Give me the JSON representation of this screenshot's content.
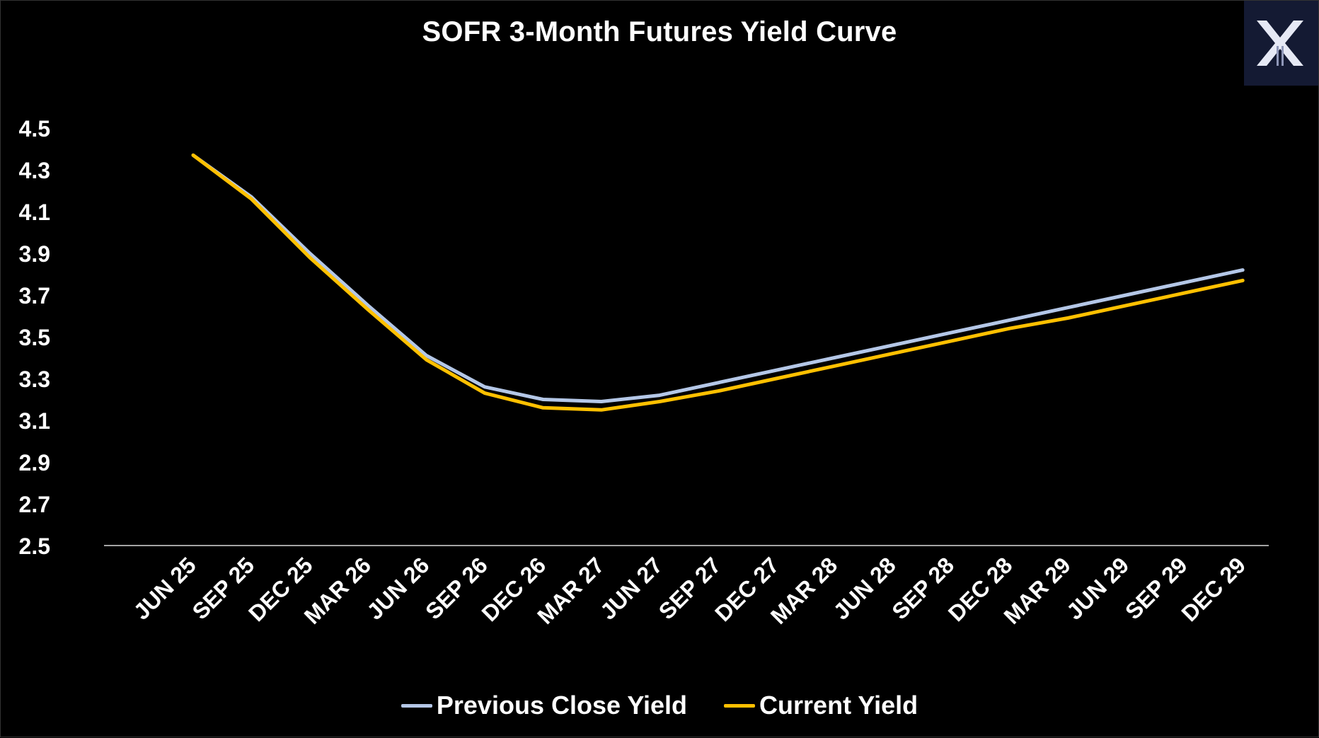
{
  "chart_data": {
    "type": "line",
    "title": "SOFR 3-Month Futures Yield Curve",
    "categories": [
      "JUN 25",
      "SEP 25",
      "DEC 25",
      "MAR 26",
      "JUN 26",
      "SEP 26",
      "DEC 26",
      "MAR 27",
      "JUN 27",
      "SEP 27",
      "DEC 27",
      "MAR 28",
      "JUN 28",
      "SEP 28",
      "DEC 28",
      "MAR 29",
      "JUN 29",
      "SEP 29",
      "DEC 29"
    ],
    "series": [
      {
        "name": "Previous Close Yield",
        "color": "#b4c7e7",
        "values": [
          4.37,
          4.17,
          3.9,
          3.65,
          3.41,
          3.26,
          3.2,
          3.19,
          3.22,
          3.28,
          3.34,
          3.4,
          3.46,
          3.52,
          3.58,
          3.64,
          3.7,
          3.76,
          3.82
        ]
      },
      {
        "name": "Current Yield",
        "color": "#ffc000",
        "values": [
          4.37,
          4.16,
          3.88,
          3.63,
          3.39,
          3.23,
          3.16,
          3.15,
          3.19,
          3.24,
          3.3,
          3.36,
          3.42,
          3.48,
          3.54,
          3.59,
          3.65,
          3.71,
          3.77
        ]
      }
    ],
    "yticks": [
      "4.5",
      "4.3",
      "4.1",
      "3.9",
      "3.7",
      "3.5",
      "3.3",
      "3.1",
      "2.9",
      "2.7",
      "2.5"
    ],
    "ylim": [
      2.5,
      4.5
    ],
    "grid": false,
    "legend_position": "bottom",
    "xlabel": "",
    "ylabel": ""
  },
  "logo": {
    "name": "x-logo",
    "color": "#141a33"
  }
}
